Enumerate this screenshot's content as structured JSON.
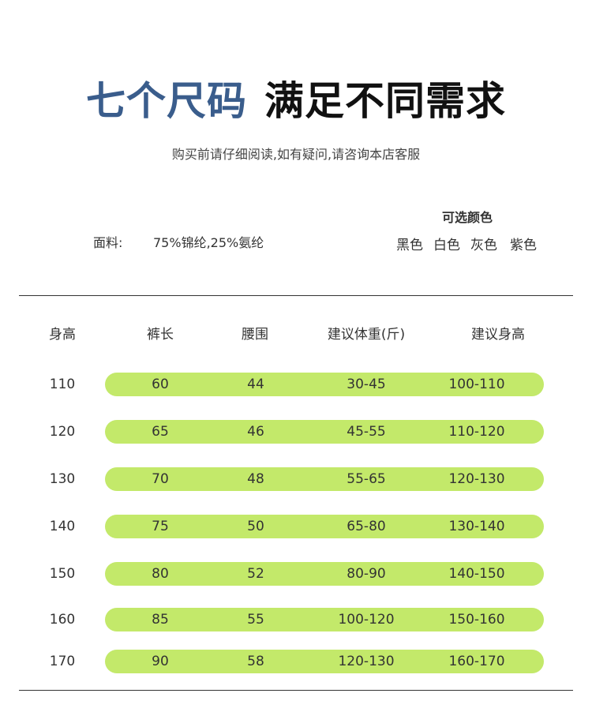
{
  "headline": {
    "part1": "七个尺码",
    "part2": "满足不同需求"
  },
  "subtitle": "购买前请仔细阅读,如有疑问,请咨询本店客服",
  "fabric": {
    "label": "面料:",
    "value": "75%锦纶,25%氨纶"
  },
  "colors": {
    "title": "可选颜色",
    "options": [
      "黑色",
      "白色",
      "灰色",
      "紫色"
    ]
  },
  "table": {
    "headers": [
      "身高",
      "裤长",
      "腰围",
      "建议体重(斤)",
      "建议身高"
    ],
    "rows": [
      [
        "110",
        "60",
        "44",
        "30-45",
        "100-110"
      ],
      [
        "120",
        "65",
        "46",
        "45-55",
        "110-120"
      ],
      [
        "130",
        "70",
        "48",
        "55-65",
        "120-130"
      ],
      [
        "140",
        "75",
        "50",
        "65-80",
        "130-140"
      ],
      [
        "150",
        "80",
        "52",
        "80-90",
        "140-150"
      ],
      [
        "160",
        "85",
        "55",
        "100-120",
        "150-160"
      ],
      [
        "170",
        "90",
        "58",
        "120-130",
        "160-170"
      ]
    ]
  },
  "accent_colors": {
    "headline_blue": "#3a5d8c",
    "row_green": "#c3e96a"
  }
}
